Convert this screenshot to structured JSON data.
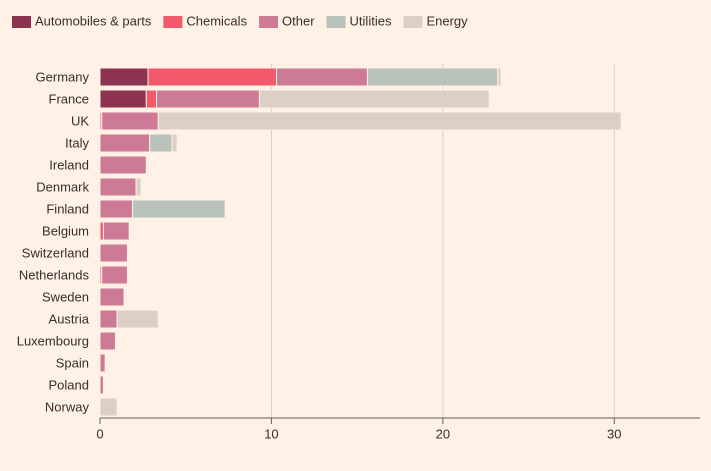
{
  "chart_data": {
    "type": "stacked_bar_horizontal",
    "categories": [
      "Germany",
      "France",
      "UK",
      "Italy",
      "Ireland",
      "Denmark",
      "Finland",
      "Belgium",
      "Switzerland",
      "Netherlands",
      "Sweden",
      "Austria",
      "Luxembourg",
      "Spain",
      "Poland",
      "Norway"
    ],
    "series": [
      {
        "name": "Automobiles & parts",
        "color": "#8b3350",
        "values": [
          2.8,
          2.7,
          0,
          0,
          0,
          0,
          0,
          0,
          0,
          0,
          0,
          0,
          0,
          0,
          0,
          0
        ]
      },
      {
        "name": "Chemicals",
        "color": "#f25a6b",
        "values": [
          7.5,
          0.6,
          0.1,
          0,
          0,
          0,
          0,
          0.2,
          0,
          0.1,
          0,
          0,
          0,
          0,
          0,
          0
        ]
      },
      {
        "name": "Other",
        "color": "#cc7a95",
        "values": [
          5.3,
          6.0,
          3.3,
          2.9,
          2.7,
          2.1,
          1.9,
          1.5,
          1.6,
          1.5,
          1.4,
          1.0,
          0.9,
          0.3,
          0.2,
          0
        ]
      },
      {
        "name": "Utilities",
        "color": "#b9c2ba",
        "values": [
          7.6,
          0,
          0,
          1.3,
          0,
          0,
          5.4,
          0,
          0,
          0,
          0,
          0,
          0,
          0,
          0,
          0
        ]
      },
      {
        "name": "Energy",
        "color": "#dccfc6",
        "values": [
          0.2,
          13.4,
          27.0,
          0.3,
          0,
          0.3,
          0,
          0,
          0,
          0,
          0,
          2.4,
          0,
          0,
          0,
          1.0
        ]
      }
    ],
    "xlim": [
      0,
      35
    ],
    "xticks": [
      0,
      10,
      20,
      30
    ],
    "grid": true,
    "legend": "top"
  }
}
